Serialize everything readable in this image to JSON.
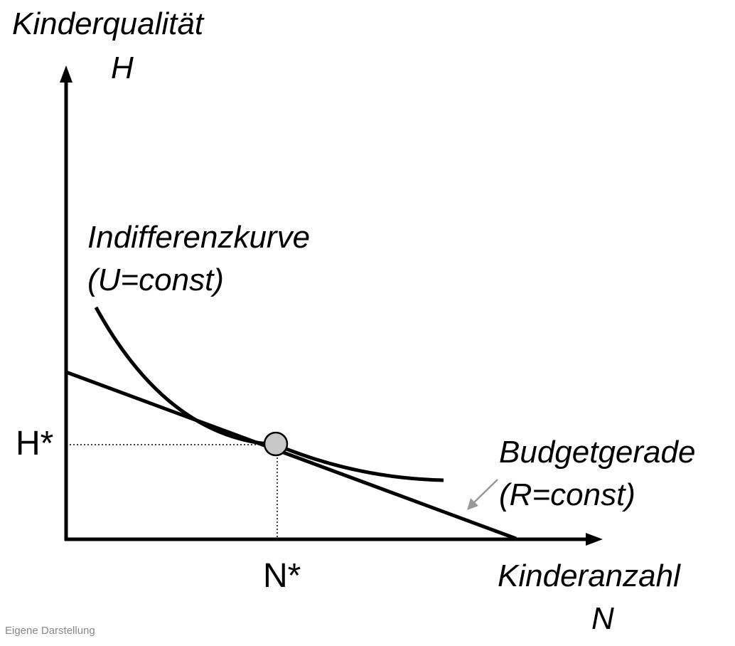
{
  "y_axis": {
    "title_line1": "Kinderqualität",
    "title_line2": "H"
  },
  "x_axis": {
    "title_line1": "Kinderanzahl",
    "title_line2": "N"
  },
  "indifference_curve": {
    "label_line1": "Indifferenzkurve",
    "label_line2": "(U=const)"
  },
  "budget_line": {
    "label_line1": "Budgetgerade",
    "label_line2": "(R=const)"
  },
  "optimum": {
    "h_label": "H*",
    "n_label": "N*"
  },
  "source_note": "Eigene Darstellung",
  "colors": {
    "lines": "#000000",
    "optimum_point_fill": "#c8c8c8",
    "arrow_pointer": "#999999",
    "source_text": "#888888"
  }
}
